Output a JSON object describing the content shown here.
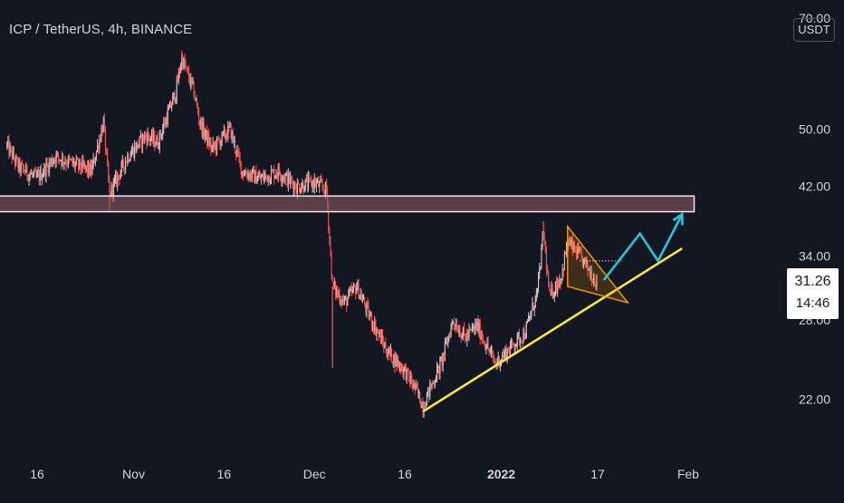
{
  "header": {
    "title": "ICP / TetherUS, 4h, BINANCE",
    "currency": "USDT"
  },
  "price_badge": {
    "price": "31.26",
    "countdown": "14:46"
  },
  "colors": {
    "background": "#131722",
    "candle_down": "#ef5350",
    "candle_up": "#d9c2c2",
    "resistance_fill": "#8b5a62",
    "support_line": "#ffeb3b",
    "wedge": "#ff9800",
    "projection": "#26c6da",
    "axis_text": "#d1d4dc"
  },
  "chart_data": {
    "type": "candlestick",
    "y_scale": "log",
    "ylim": [
      19.2,
      72
    ],
    "y_ticks": [
      {
        "value": 70,
        "label": "70.00"
      },
      {
        "value": 50,
        "label": "50.00"
      },
      {
        "value": 42,
        "label": "42.00"
      },
      {
        "value": 34,
        "label": "34.00"
      },
      {
        "value": 28,
        "label": "28.00"
      },
      {
        "value": 22,
        "label": "22.00"
      }
    ],
    "x_ticks": [
      {
        "date": "2021-10-16",
        "label": "16",
        "bold": false
      },
      {
        "date": "2021-11-01",
        "label": "Nov",
        "bold": false
      },
      {
        "date": "2021-11-16",
        "label": "16",
        "bold": false
      },
      {
        "date": "2021-12-01",
        "label": "Dec",
        "bold": false
      },
      {
        "date": "2021-12-16",
        "label": "16",
        "bold": false
      },
      {
        "date": "2022-01-01",
        "label": "2022",
        "bold": true
      },
      {
        "date": "2022-01-17",
        "label": "17",
        "bold": false
      },
      {
        "date": "2022-02-01",
        "label": "Feb",
        "bold": false
      }
    ],
    "close_path": [
      [
        "2021-10-11",
        47.5
      ],
      [
        "2021-10-13",
        44.5
      ],
      [
        "2021-10-16",
        43.0
      ],
      [
        "2021-10-19",
        46.0
      ],
      [
        "2021-10-22",
        45.0
      ],
      [
        "2021-10-25",
        44.0
      ],
      [
        "2021-10-27",
        51.0
      ],
      [
        "2021-10-28",
        41.0
      ],
      [
        "2021-10-31",
        46.0
      ],
      [
        "2021-11-03",
        49.0
      ],
      [
        "2021-11-05",
        48.0
      ],
      [
        "2021-11-08",
        56.0
      ],
      [
        "2021-11-09",
        62.0
      ],
      [
        "2021-11-11",
        56.0
      ],
      [
        "2021-11-12",
        51.0
      ],
      [
        "2021-11-14",
        47.0
      ],
      [
        "2021-11-17",
        50.0
      ],
      [
        "2021-11-19",
        44.0
      ],
      [
        "2021-11-22",
        43.0
      ],
      [
        "2021-11-25",
        44.0
      ],
      [
        "2021-11-28",
        42.0
      ],
      [
        "2021-12-01",
        42.5
      ],
      [
        "2021-12-03",
        41.5
      ],
      [
        "2021-12-04",
        31.0
      ],
      [
        "2021-12-06",
        29.5
      ],
      [
        "2021-12-08",
        31.0
      ],
      [
        "2021-12-10",
        28.5
      ],
      [
        "2021-12-13",
        25.5
      ],
      [
        "2021-12-16",
        24.0
      ],
      [
        "2021-12-18",
        22.5
      ],
      [
        "2021-12-19",
        21.6
      ],
      [
        "2021-12-22",
        24.5
      ],
      [
        "2021-12-24",
        28.0
      ],
      [
        "2021-12-26",
        26.5
      ],
      [
        "2021-12-28",
        27.5
      ],
      [
        "2021-12-31",
        24.5
      ],
      [
        "2022-01-02",
        25.5
      ],
      [
        "2022-01-05",
        27.0
      ],
      [
        "2022-01-07",
        30.5
      ],
      [
        "2022-01-08",
        36.5
      ],
      [
        "2022-01-09",
        30.0
      ],
      [
        "2022-01-11",
        32.0
      ],
      [
        "2022-01-12",
        35.5
      ],
      [
        "2022-01-14",
        34.0
      ],
      [
        "2022-01-17",
        31.3
      ]
    ],
    "spikes": [
      {
        "date": "2021-12-04",
        "low": 24.2
      },
      {
        "date": "2021-10-28",
        "low": 39.0
      },
      {
        "date": "2022-01-08",
        "high": 37.8
      },
      {
        "date": "2021-11-09",
        "high": 63.5
      }
    ],
    "annotations": {
      "resistance_zone": {
        "from": "2021-10-09",
        "to": "2022-02-02",
        "low": 38.9,
        "high": 40.8
      },
      "support_line": {
        "from": [
          "2021-12-19",
          21.2
        ],
        "to": [
          "2022-01-31",
          34.8
        ]
      },
      "wedge": {
        "points": [
          [
            "2022-01-12",
            37.2
          ],
          [
            "2022-01-22",
            29.5
          ],
          [
            "2022-01-12",
            31.0
          ],
          [
            "2022-01-17",
            31.0
          ]
        ]
      },
      "dotted_level": {
        "from": "2022-01-14",
        "to": "2022-01-21",
        "value": 33.5
      },
      "projection": [
        [
          "2022-01-18",
          31.6
        ],
        [
          "2022-01-24",
          36.4
        ],
        [
          "2022-01-27",
          33.5
        ],
        [
          "2022-01-31",
          38.6
        ]
      ]
    }
  }
}
